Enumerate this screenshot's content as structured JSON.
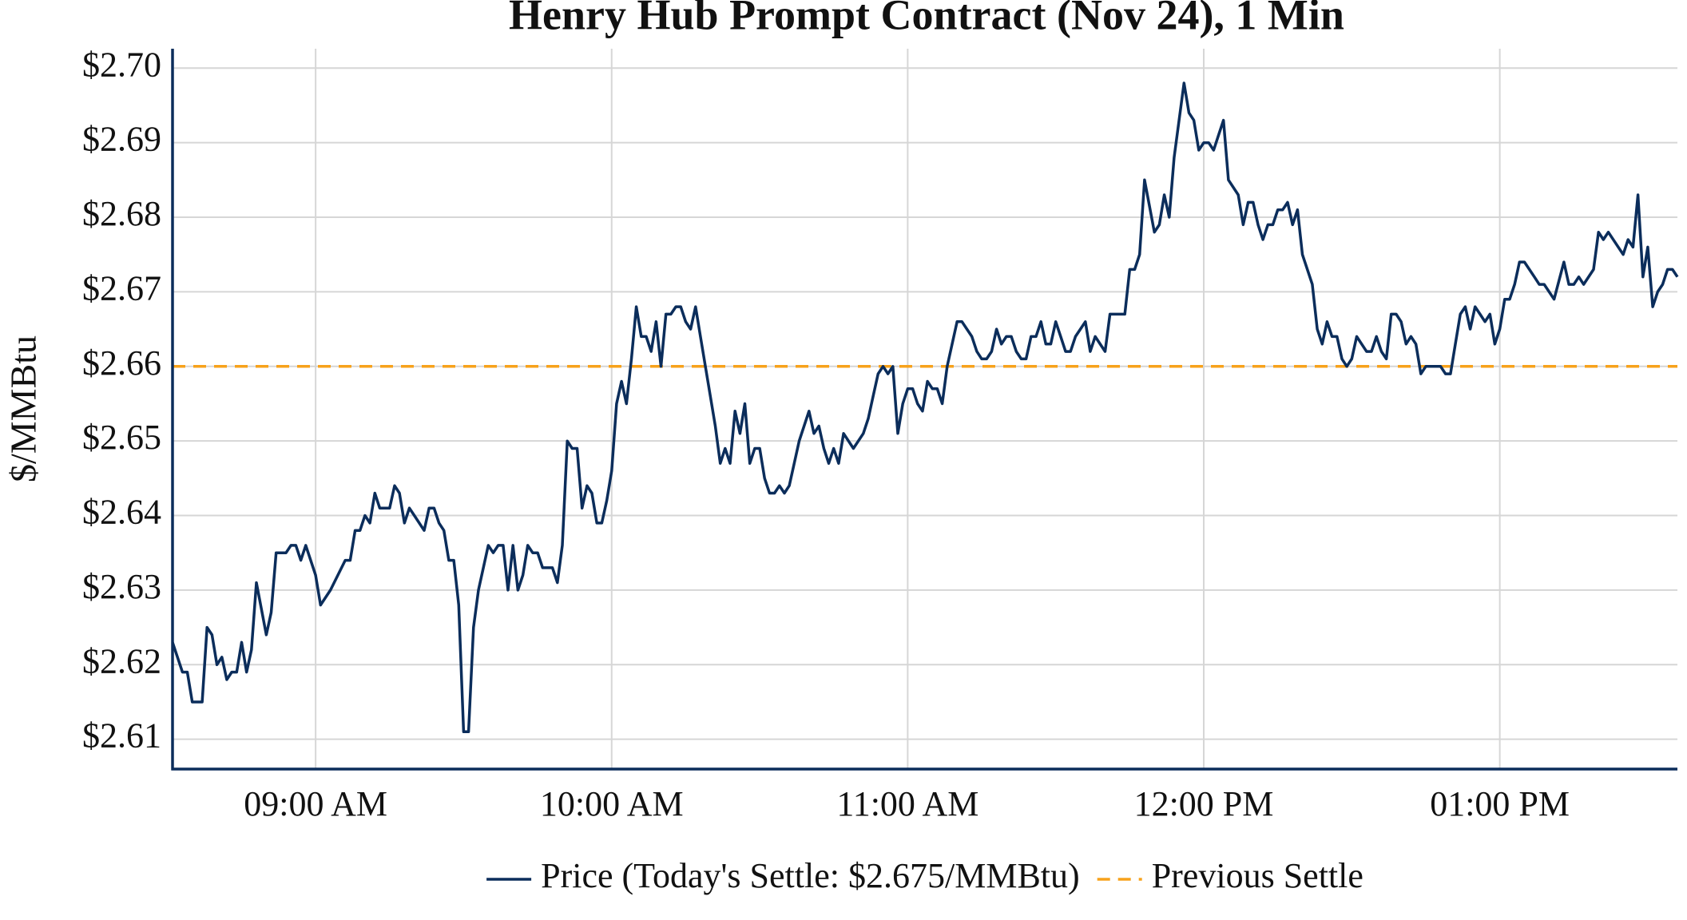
{
  "chart_data": {
    "type": "line",
    "title": "Henry Hub Prompt Contract (Nov 24), 1 Min",
    "y_label": "$/MMBtu",
    "x": [
      "08:31",
      "08:33",
      "08:34",
      "08:35",
      "08:37",
      "08:38",
      "08:39",
      "08:40",
      "08:41",
      "08:42",
      "08:43",
      "08:44",
      "08:45",
      "08:46",
      "08:47",
      "08:48",
      "08:50",
      "08:51",
      "08:52",
      "08:54",
      "08:55",
      "08:56",
      "08:57",
      "08:58",
      "09:00",
      "09:01",
      "09:03",
      "09:06",
      "09:07",
      "09:08",
      "09:09",
      "09:10",
      "09:11",
      "09:12",
      "09:13",
      "09:15",
      "09:16",
      "09:17",
      "09:18",
      "09:19",
      "09:20",
      "09:22",
      "09:23",
      "09:24",
      "09:25",
      "09:26",
      "09:27",
      "09:28",
      "09:29",
      "09:30",
      "09:31",
      "09:32",
      "09:33",
      "09:35",
      "09:36",
      "09:37",
      "09:38",
      "09:39",
      "09:40",
      "09:41",
      "09:42",
      "09:43",
      "09:44",
      "09:45",
      "09:46",
      "09:48",
      "09:49",
      "09:50",
      "09:51",
      "09:52",
      "09:53",
      "09:54",
      "09:55",
      "09:56",
      "09:57",
      "09:58",
      "09:59",
      "10:00",
      "10:01",
      "10:02",
      "10:03",
      "10:04",
      "10:05",
      "10:06",
      "10:07",
      "10:08",
      "10:09",
      "10:10",
      "10:11",
      "10:12",
      "10:13",
      "10:14",
      "10:15",
      "10:16",
      "10:17",
      "10:18",
      "10:19",
      "10:20",
      "10:21",
      "10:22",
      "10:23",
      "10:24",
      "10:25",
      "10:26",
      "10:27",
      "10:28",
      "10:29",
      "10:30",
      "10:31",
      "10:32",
      "10:33",
      "10:34",
      "10:35",
      "10:36",
      "10:37",
      "10:38",
      "10:40",
      "10:41",
      "10:42",
      "10:43",
      "10:44",
      "10:45",
      "10:46",
      "10:47",
      "10:49",
      "10:51",
      "10:52",
      "10:53",
      "10:54",
      "10:55",
      "10:56",
      "10:57",
      "10:58",
      "10:59",
      "11:00",
      "11:01",
      "11:02",
      "11:03",
      "11:04",
      "11:05",
      "11:06",
      "11:07",
      "11:08",
      "11:09",
      "11:10",
      "11:11",
      "11:12",
      "11:13",
      "11:14",
      "11:15",
      "11:16",
      "11:17",
      "11:18",
      "11:19",
      "11:20",
      "11:21",
      "11:22",
      "11:23",
      "11:24",
      "11:25",
      "11:26",
      "11:27",
      "11:28",
      "11:29",
      "11:30",
      "11:31",
      "11:32",
      "11:33",
      "11:34",
      "11:35",
      "11:36",
      "11:37",
      "11:38",
      "11:40",
      "11:41",
      "11:43",
      "11:44",
      "11:45",
      "11:46",
      "11:47",
      "11:48",
      "11:50",
      "11:51",
      "11:52",
      "11:53",
      "11:54",
      "11:56",
      "11:57",
      "11:58",
      "11:59",
      "12:00",
      "12:01",
      "12:02",
      "12:03",
      "12:04",
      "12:05",
      "12:07",
      "12:08",
      "12:09",
      "12:10",
      "12:11",
      "12:12",
      "12:13",
      "12:14",
      "12:15",
      "12:16",
      "12:17",
      "12:18",
      "12:19",
      "12:20",
      "12:22",
      "12:23",
      "12:24",
      "12:25",
      "12:26",
      "12:27",
      "12:28",
      "12:29",
      "12:30",
      "12:31",
      "12:32",
      "12:33",
      "12:34",
      "12:35",
      "12:36",
      "12:37",
      "12:38",
      "12:39",
      "12:40",
      "12:41",
      "12:42",
      "12:43",
      "12:44",
      "12:45",
      "12:46",
      "12:47",
      "12:48",
      "12:49",
      "12:50",
      "12:51",
      "12:52",
      "12:53",
      "12:54",
      "12:55",
      "12:56",
      "12:57",
      "12:58",
      "12:59",
      "13:00",
      "13:01",
      "13:02",
      "13:03",
      "13:04",
      "13:05",
      "13:07",
      "13:08",
      "13:09",
      "13:11",
      "13:13",
      "13:14",
      "13:15",
      "13:16",
      "13:17",
      "13:19",
      "13:20",
      "13:21",
      "13:22",
      "13:25",
      "13:26",
      "13:27",
      "13:28",
      "13:29",
      "13:30",
      "13:31",
      "13:32",
      "13:33",
      "13:34",
      "13:35",
      "13:36"
    ],
    "series": [
      {
        "name": "Price (Today's Settle: $2.675/MMBtu)",
        "color": "#0b2d5b",
        "values": [
          2.623,
          2.619,
          2.619,
          2.615,
          2.615,
          2.625,
          2.624,
          2.62,
          2.621,
          2.618,
          2.619,
          2.619,
          2.623,
          2.619,
          2.622,
          2.631,
          2.624,
          2.627,
          2.635,
          2.635,
          2.636,
          2.636,
          2.634,
          2.636,
          2.632,
          2.628,
          2.63,
          2.634,
          2.634,
          2.638,
          2.638,
          2.64,
          2.639,
          2.643,
          2.641,
          2.641,
          2.644,
          2.643,
          2.639,
          2.641,
          2.64,
          2.638,
          2.641,
          2.641,
          2.639,
          2.638,
          2.634,
          2.634,
          2.628,
          2.611,
          2.611,
          2.625,
          2.63,
          2.636,
          2.635,
          2.636,
          2.636,
          2.63,
          2.636,
          2.63,
          2.632,
          2.636,
          2.635,
          2.635,
          2.633,
          2.633,
          2.631,
          2.636,
          2.65,
          2.649,
          2.649,
          2.641,
          2.644,
          2.643,
          2.639,
          2.639,
          2.642,
          2.646,
          2.655,
          2.658,
          2.655,
          2.661,
          2.668,
          2.664,
          2.664,
          2.662,
          2.666,
          2.66,
          2.667,
          2.667,
          2.668,
          2.668,
          2.666,
          2.665,
          2.668,
          2.664,
          2.66,
          2.656,
          2.652,
          2.647,
          2.649,
          2.647,
          2.654,
          2.651,
          2.655,
          2.647,
          2.649,
          2.649,
          2.645,
          2.643,
          2.643,
          2.644,
          2.643,
          2.644,
          2.647,
          2.65,
          2.654,
          2.651,
          2.652,
          2.649,
          2.647,
          2.649,
          2.647,
          2.651,
          2.649,
          2.651,
          2.653,
          2.656,
          2.659,
          2.66,
          2.659,
          2.66,
          2.651,
          2.655,
          2.657,
          2.657,
          2.655,
          2.654,
          2.658,
          2.657,
          2.657,
          2.655,
          2.66,
          2.663,
          2.666,
          2.666,
          2.665,
          2.664,
          2.662,
          2.661,
          2.661,
          2.662,
          2.665,
          2.663,
          2.664,
          2.664,
          2.662,
          2.661,
          2.661,
          2.664,
          2.664,
          2.666,
          2.663,
          2.663,
          2.666,
          2.664,
          2.662,
          2.662,
          2.664,
          2.665,
          2.666,
          2.662,
          2.664,
          2.662,
          2.667,
          2.667,
          2.667,
          2.673,
          2.673,
          2.675,
          2.685,
          2.678,
          2.679,
          2.683,
          2.68,
          2.688,
          2.698,
          2.694,
          2.693,
          2.689,
          2.69,
          2.69,
          2.689,
          2.691,
          2.693,
          2.685,
          2.683,
          2.679,
          2.682,
          2.682,
          2.679,
          2.677,
          2.679,
          2.679,
          2.681,
          2.681,
          2.682,
          2.679,
          2.681,
          2.675,
          2.671,
          2.665,
          2.663,
          2.666,
          2.664,
          2.664,
          2.661,
          2.66,
          2.661,
          2.664,
          2.663,
          2.662,
          2.662,
          2.664,
          2.662,
          2.661,
          2.667,
          2.667,
          2.666,
          2.663,
          2.664,
          2.663,
          2.659,
          2.66,
          2.66,
          2.66,
          2.66,
          2.659,
          2.659,
          2.663,
          2.667,
          2.668,
          2.665,
          2.668,
          2.667,
          2.666,
          2.667,
          2.663,
          2.665,
          2.669,
          2.669,
          2.671,
          2.674,
          2.674,
          2.672,
          2.671,
          2.671,
          2.669,
          2.674,
          2.671,
          2.671,
          2.672,
          2.671,
          2.673,
          2.678,
          2.677,
          2.678,
          2.675,
          2.677,
          2.676,
          2.683,
          2.672,
          2.676,
          2.668,
          2.67,
          2.671,
          2.673,
          2.673,
          2.672
        ]
      }
    ],
    "reference_lines": [
      {
        "name": "Previous Settle",
        "value": 2.66,
        "color": "#f7a21b",
        "dashed": true
      }
    ],
    "xlim": [
      "08:31",
      "13:36"
    ],
    "xticks": [
      {
        "value": "09:00",
        "label": "09:00 AM"
      },
      {
        "value": "10:00",
        "label": "10:00 AM"
      },
      {
        "value": "11:00",
        "label": "11:00 AM"
      },
      {
        "value": "12:00",
        "label": "12:00 PM"
      },
      {
        "value": "13:00",
        "label": "01:00 PM"
      }
    ],
    "ylim": [
      2.606,
      2.7026
    ],
    "yticks": [
      {
        "value": 2.61,
        "label": "$2.61"
      },
      {
        "value": 2.62,
        "label": "$2.62"
      },
      {
        "value": 2.63,
        "label": "$2.63"
      },
      {
        "value": 2.64,
        "label": "$2.64"
      },
      {
        "value": 2.65,
        "label": "$2.65"
      },
      {
        "value": 2.66,
        "label": "$2.66"
      },
      {
        "value": 2.67,
        "label": "$2.67"
      },
      {
        "value": 2.68,
        "label": "$2.68"
      },
      {
        "value": 2.69,
        "label": "$2.69"
      },
      {
        "value": 2.7,
        "label": "$2.70"
      }
    ],
    "grid": true,
    "legend": "bottom"
  }
}
